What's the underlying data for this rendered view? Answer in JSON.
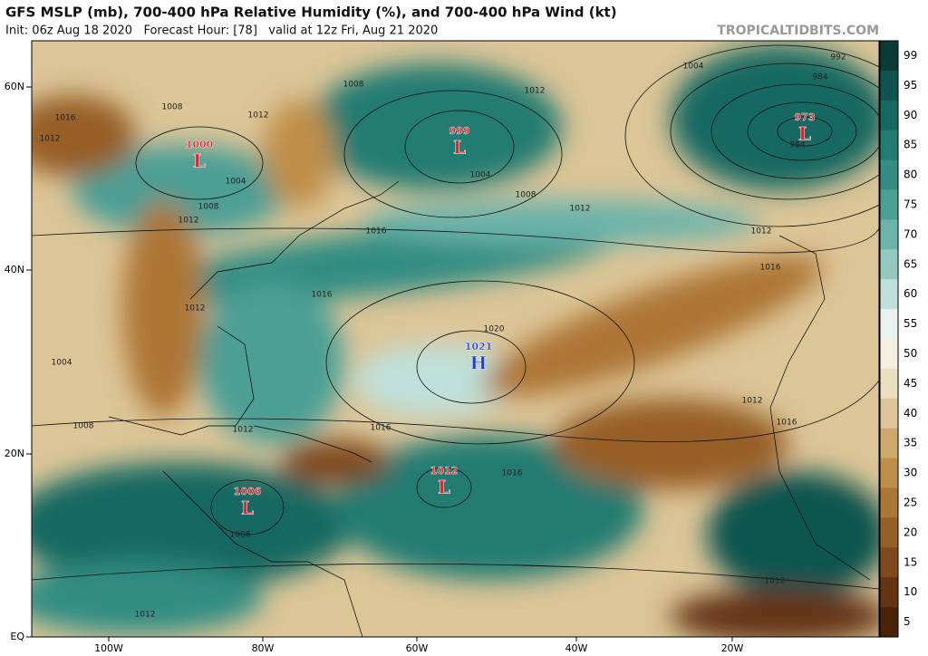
{
  "header": {
    "title": "GFS MSLP (mb), 700-400 hPa Relative Humidity (%), and 700-400 hPa Wind (kt)",
    "subtitle": "Init: 06z Aug 18 2020   Forecast Hour: [78]   valid at 12z Fri, Aug 21 2020",
    "credit": "TROPICALTIDBITS.COM"
  },
  "latitude_labels": [
    "60N",
    "40N",
    "20N",
    "EQ"
  ],
  "longitude_labels": [
    "100W",
    "80W",
    "60W",
    "40W",
    "20W"
  ],
  "colorbar": {
    "levels": [
      99,
      95,
      90,
      85,
      80,
      75,
      70,
      65,
      60,
      55,
      50,
      45,
      40,
      35,
      30,
      25,
      20,
      15,
      10,
      5
    ],
    "colors": [
      "#0b3b37",
      "#0f5450",
      "#166962",
      "#227b72",
      "#338d83",
      "#4c9f95",
      "#6cb3aa",
      "#94c9c2",
      "#bfe0da",
      "#e8f3ef",
      "#f4efdf",
      "#ebdfbf",
      "#dcc597",
      "#cda96c",
      "#bf8f4a",
      "#ad7634",
      "#975f25",
      "#7f491a",
      "#653512",
      "#492409"
    ]
  },
  "pressure_centers": [
    {
      "value": "1000",
      "symbol": "L"
    },
    {
      "value": "999",
      "symbol": "L"
    },
    {
      "value": "973",
      "symbol": "L"
    },
    {
      "value": "1021",
      "symbol": "H"
    },
    {
      "value": "1012",
      "symbol": "L"
    },
    {
      "value": "1006",
      "symbol": "L"
    }
  ],
  "isobar_labels": [
    "1016",
    "1012",
    "1008",
    "1004",
    "1012",
    "1008",
    "1004",
    "1008",
    "1012",
    "1004",
    "1012",
    "992",
    "984",
    "984",
    "1012",
    "1016",
    "1016",
    "1016",
    "1020",
    "1012",
    "1004",
    "1008",
    "1012",
    "1016",
    "1012",
    "1008",
    "1016",
    "1012",
    "1008",
    "1016",
    "1012",
    "1012"
  ]
}
